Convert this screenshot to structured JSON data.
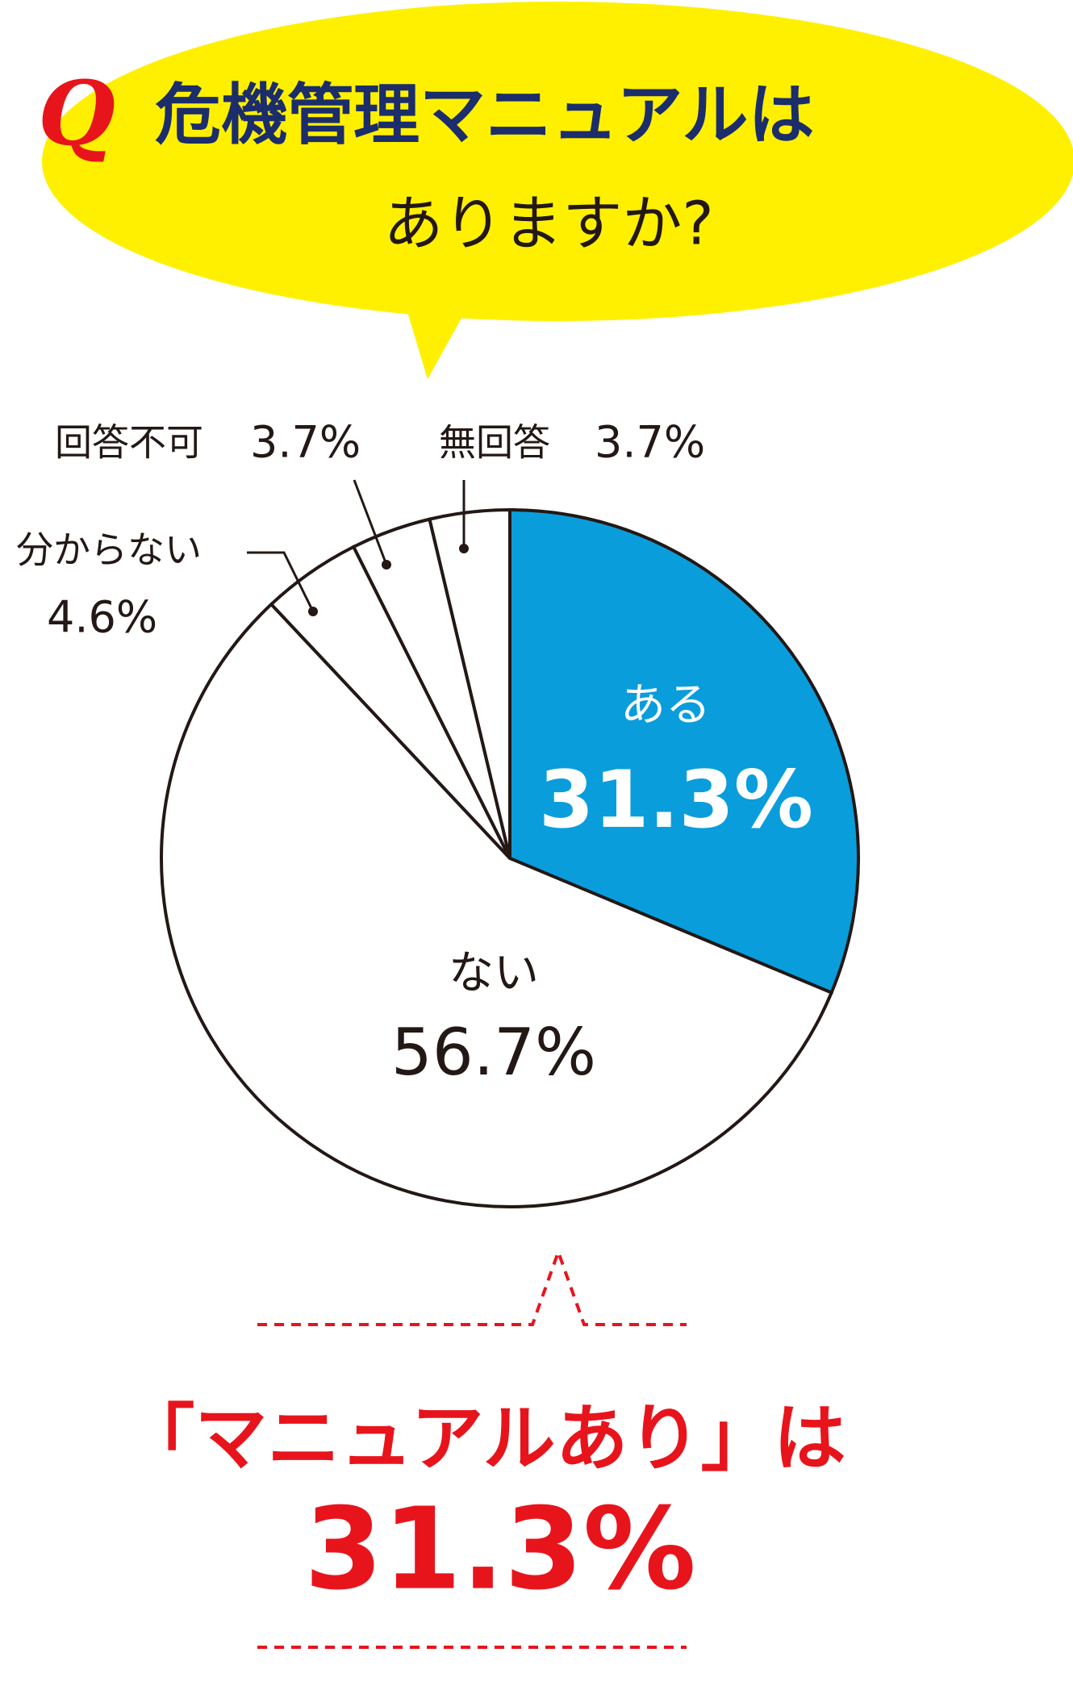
{
  "chart_data": {
    "type": "pie",
    "title_marker": "Q",
    "title_lines": [
      "危機管理マニュアルは",
      "ありますか?"
    ],
    "categories": [
      "ある",
      "ない",
      "分からない",
      "回答不可",
      "無回答"
    ],
    "values": [
      31.3,
      56.7,
      4.6,
      3.7,
      3.7
    ],
    "value_labels": [
      "31.3%",
      "56.7%",
      "4.6%",
      "3.7%",
      "3.7%"
    ],
    "colors": [
      "#0a9ddc",
      "#ffffff",
      "#ffffff",
      "#ffffff",
      "#ffffff"
    ],
    "annotation": {
      "text": "「マニュアルあり」は",
      "value_label": "31.3%"
    }
  }
}
